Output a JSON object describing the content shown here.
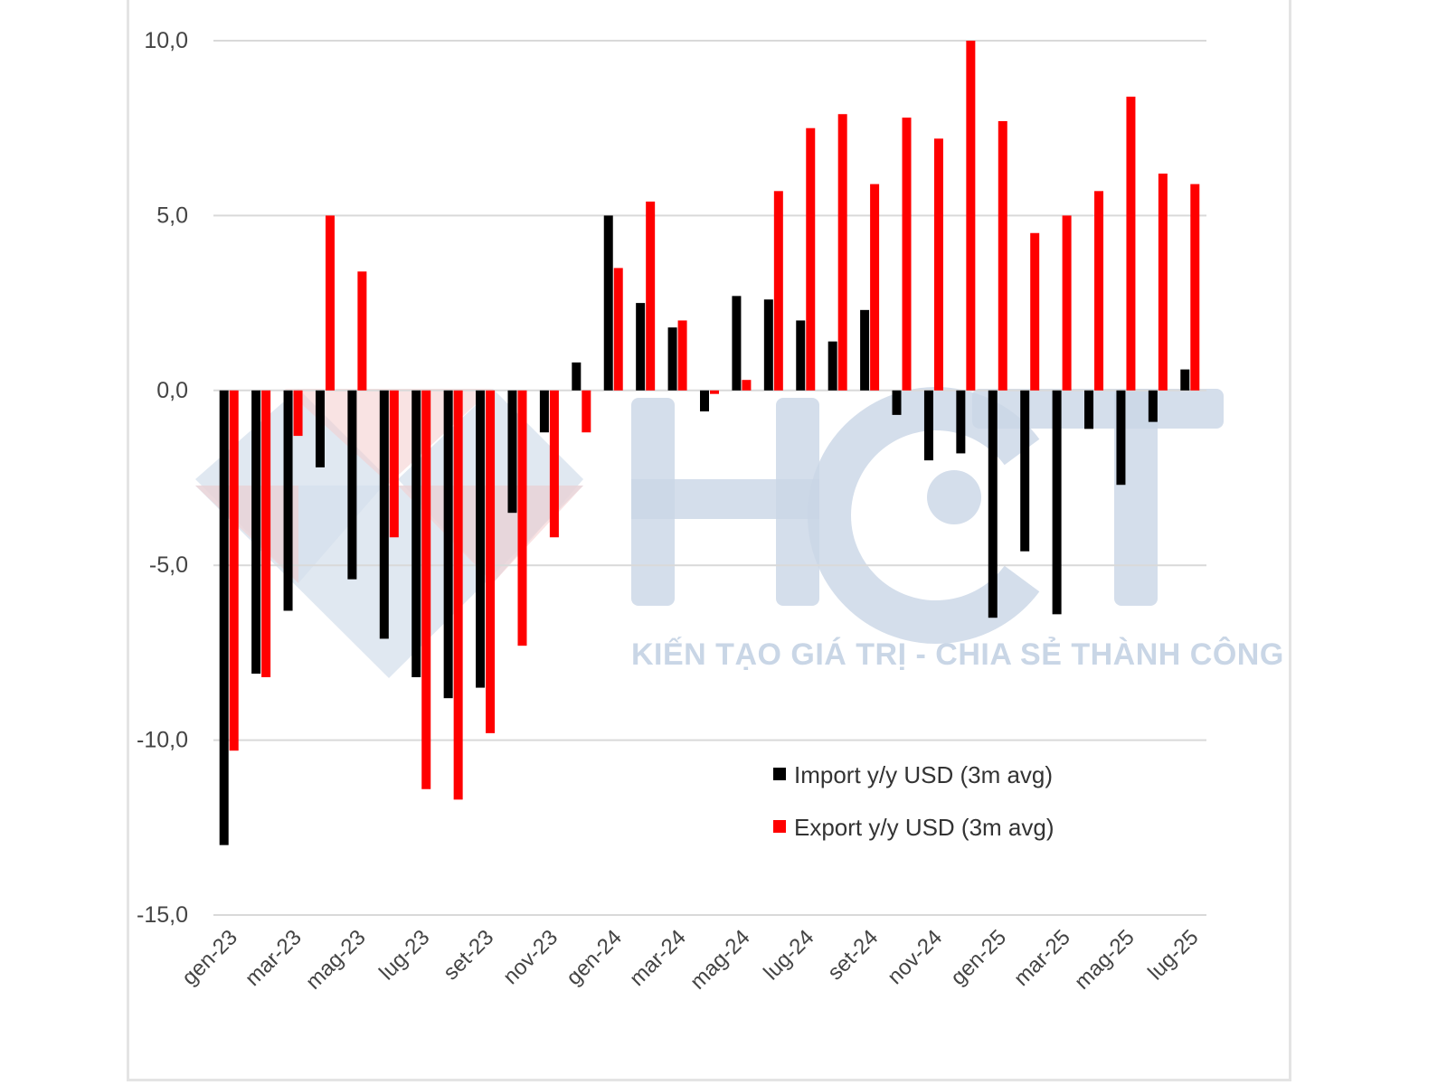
{
  "chart_data": {
    "type": "bar",
    "ylim": [
      -15,
      10
    ],
    "yticks": [
      "-15,0",
      "-10,0",
      "-5,0",
      "0,0",
      "5,0",
      "10,0"
    ],
    "ytick_values": [
      -15,
      -10,
      -5,
      0,
      5,
      10
    ],
    "categories": [
      "gen-23",
      "feb-23",
      "mar-23",
      "apr-23",
      "mag-23",
      "giu-23",
      "lug-23",
      "ago-23",
      "set-23",
      "ott-23",
      "nov-23",
      "dic-23",
      "gen-24",
      "feb-24",
      "mar-24",
      "apr-24",
      "mag-24",
      "giu-24",
      "lug-24",
      "ago-24",
      "set-24",
      "ott-24",
      "nov-24",
      "dic-24",
      "gen-25",
      "feb-25",
      "mar-25",
      "apr-25",
      "mag-25",
      "giu-25",
      "lug-25"
    ],
    "x_tick_labels": [
      "gen-23",
      "mar-23",
      "mag-23",
      "lug-23",
      "set-23",
      "nov-23",
      "gen-24",
      "mar-24",
      "mag-24",
      "lug-24",
      "set-24",
      "nov-24",
      "gen-25",
      "mar-25",
      "mag-25",
      "lug-25"
    ],
    "series": [
      {
        "name": "Import y/y USD (3m avg)",
        "color": "#000000",
        "values": [
          -13.0,
          -8.1,
          -6.3,
          -2.2,
          -5.4,
          -7.1,
          -8.2,
          -8.8,
          -8.5,
          -3.5,
          -1.2,
          0.8,
          5.0,
          2.5,
          1.8,
          -0.6,
          2.7,
          2.6,
          2.0,
          1.4,
          2.3,
          -0.7,
          -2.0,
          -1.8,
          -6.5,
          -4.6,
          -6.4,
          -1.1,
          -2.7,
          -0.9,
          0.6
        ]
      },
      {
        "name": "Export y/y USD (3m avg)",
        "color": "#ff0000",
        "values": [
          -10.3,
          -8.2,
          -1.3,
          5.0,
          3.4,
          -4.2,
          -11.4,
          -11.7,
          -9.8,
          -7.3,
          -4.2,
          -1.2,
          3.5,
          5.4,
          2.0,
          -0.1,
          0.3,
          5.7,
          7.5,
          7.9,
          5.9,
          7.8,
          7.2,
          10.0,
          7.7,
          4.5,
          5.0,
          5.7,
          8.4,
          6.2,
          5.9
        ]
      }
    ],
    "title": "",
    "xlabel": "",
    "ylabel": "",
    "grid": true,
    "legend_position": "bottom-right"
  },
  "watermark": {
    "letters": "HCT",
    "slogan": "KIẾN TẠO GIÁ TRỊ - CHIA SẺ THÀNH CÔNG"
  }
}
